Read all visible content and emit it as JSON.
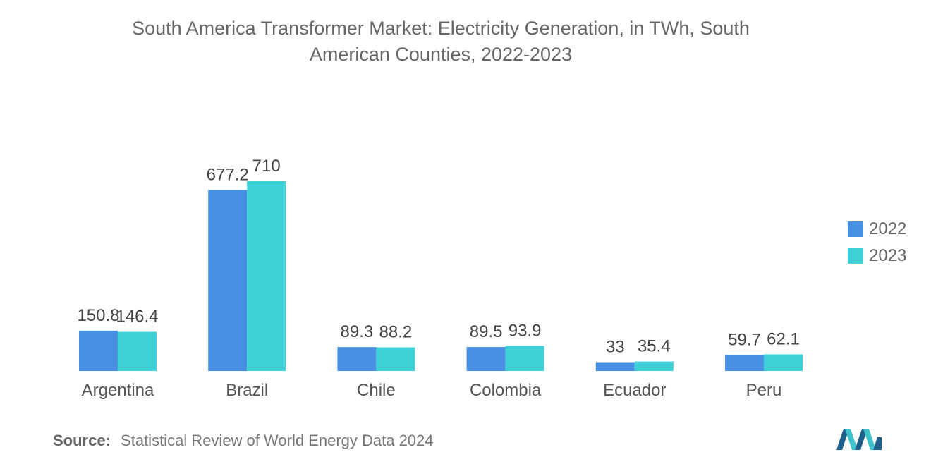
{
  "chart_data": {
    "type": "bar",
    "title": "South America Transformer Market: Electricity Generation, in TWh, South American Counties, 2022-2023",
    "title_lines": [
      "South America Transformer Market: Electricity Generation, in TWh, South",
      "American Counties, 2022-2023"
    ],
    "categories": [
      "Argentina",
      "Brazil",
      "Chile",
      "Colombia",
      "Ecuador",
      "Peru"
    ],
    "series": [
      {
        "name": "2022",
        "color": "#4a90e2",
        "values": [
          150.8,
          677.2,
          89.3,
          89.5,
          33,
          59.7
        ],
        "labels": [
          "150.8",
          "677.2",
          "89.3",
          "89.5",
          "33",
          "59.7"
        ]
      },
      {
        "name": "2023",
        "color": "#40d0d8",
        "values": [
          146.4,
          710,
          88.2,
          93.9,
          35.4,
          62.1
        ],
        "labels": [
          "146.4",
          "710",
          "88.2",
          "93.9",
          "35.4",
          "62.1"
        ]
      }
    ],
    "xlabel": "",
    "ylabel": "",
    "ylim": [
      0,
      710
    ],
    "grid": false,
    "legend_position": "right"
  },
  "source": {
    "label": "Source:",
    "text": "Statistical Review of World Energy Data 2024"
  }
}
